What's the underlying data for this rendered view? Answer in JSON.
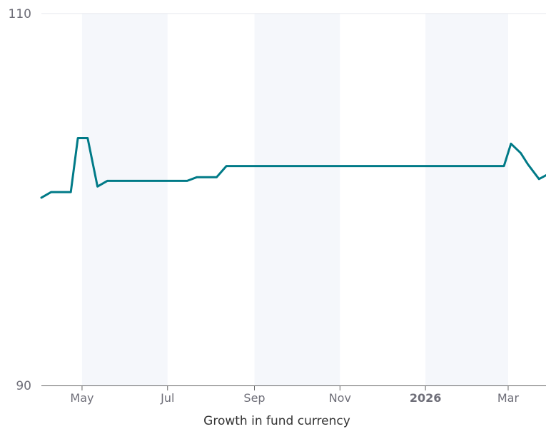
{
  "chart_data": {
    "type": "line",
    "xlabel": "Growth in fund currency",
    "ylim": [
      90,
      110
    ],
    "y_ticks": [
      {
        "value": 110,
        "label": "110"
      },
      {
        "value": 90,
        "label": "90"
      }
    ],
    "x_ticks": [
      {
        "date": "2025-05-01",
        "label": "May",
        "bold": false
      },
      {
        "date": "2025-07-01",
        "label": "Jul",
        "bold": false
      },
      {
        "date": "2025-09-01",
        "label": "Sep",
        "bold": false
      },
      {
        "date": "2025-11-01",
        "label": "Nov",
        "bold": false
      },
      {
        "date": "2026-01-01",
        "label": "2026",
        "bold": true
      },
      {
        "date": "2026-03-01",
        "label": "Mar",
        "bold": false
      }
    ],
    "bands": [
      {
        "from": "2025-05-01",
        "to": "2025-07-01"
      },
      {
        "from": "2025-09-01",
        "to": "2025-11-01"
      },
      {
        "from": "2026-01-01",
        "to": "2026-03-01"
      }
    ],
    "xlim": [
      "2025-04-02",
      "2026-03-28"
    ],
    "grid": false,
    "colors": {
      "line": "#007A87",
      "band": "#F5F7FB",
      "axis": "#666666",
      "tick_label": "#6E6E78",
      "top_gridline": "#E4E7EE"
    },
    "series": [
      {
        "x": [
          "2025-04-02",
          "2025-04-09",
          "2025-04-23",
          "2025-04-28",
          "2025-05-05",
          "2025-05-12",
          "2025-05-19",
          "2025-07-15",
          "2025-07-22",
          "2025-08-05",
          "2025-08-12",
          "2025-12-01",
          "2026-02-26",
          "2026-03-03",
          "2026-03-10",
          "2026-03-15",
          "2026-03-23",
          "2026-03-28"
        ],
        "values": [
          100.1,
          100.4,
          100.4,
          103.3,
          103.3,
          100.7,
          101.0,
          101.0,
          101.2,
          101.2,
          101.8,
          101.8,
          101.8,
          103.0,
          102.5,
          101.9,
          101.1,
          101.3
        ]
      }
    ]
  }
}
